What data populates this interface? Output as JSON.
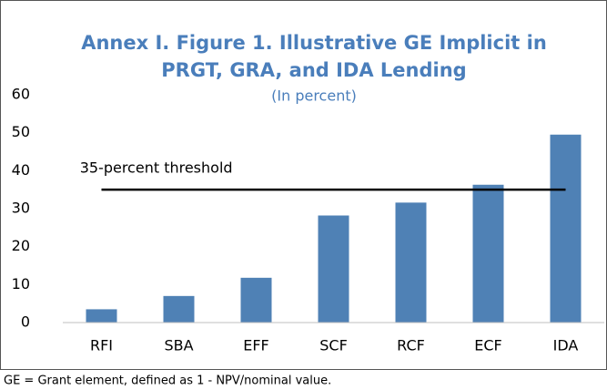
{
  "chart_data": {
    "type": "bar",
    "title": [
      "Annex I. Figure 1. Illustrative GE Implicit in",
      "PRGT, GRA, and IDA Lending"
    ],
    "subtitle": "(In percent)",
    "categories": [
      "RFI",
      "SBA",
      "EFF",
      "SCF",
      "RCF",
      "ECF",
      "IDA"
    ],
    "values": [
      3.5,
      7,
      11.8,
      28.2,
      31.6,
      36.3,
      49.5
    ],
    "color": "#4f81b5",
    "ylim": [
      0,
      60
    ],
    "yticks": [
      0,
      10,
      20,
      30,
      40,
      50,
      60
    ],
    "grid": false,
    "threshold": {
      "value": 35,
      "label": "35-percent threshold"
    },
    "footnote": "GE = Grant element, defined as 1 - NPV/nominal value."
  }
}
